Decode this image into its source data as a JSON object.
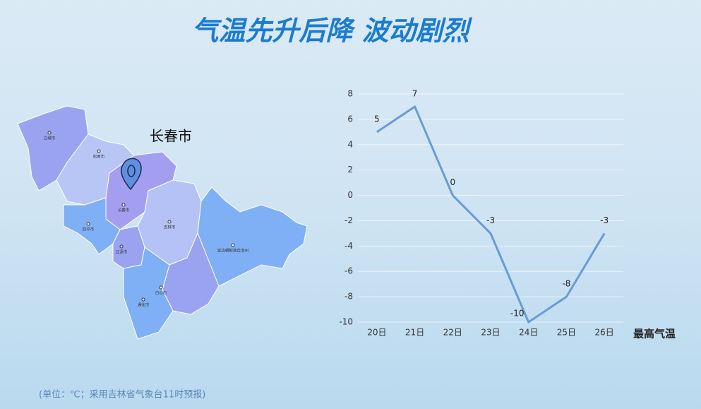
{
  "title": "气温先升后降 波动剧烈",
  "map": {
    "highlight": "长春市",
    "cities": [
      "白城市",
      "松原市",
      "长春市",
      "吉林市",
      "四平市",
      "辽源市",
      "通化市",
      "白山市",
      "延边朝鲜族自治州"
    ]
  },
  "chart_data": {
    "type": "line",
    "categories": [
      "20日",
      "21日",
      "22日",
      "23日",
      "24日",
      "25日",
      "26日"
    ],
    "series": [
      {
        "name": "最高气温",
        "color": "#6a9bd3",
        "values": [
          5,
          7,
          0,
          -3,
          -10,
          -8,
          -3
        ]
      }
    ],
    "ylim": [
      -10,
      8
    ],
    "yticks": [
      -10,
      -8,
      -6,
      -4,
      -2,
      0,
      2,
      4,
      6,
      8
    ],
    "grid": true
  },
  "footnote": "(单位：℃；采用吉林省气象台11时预报)"
}
